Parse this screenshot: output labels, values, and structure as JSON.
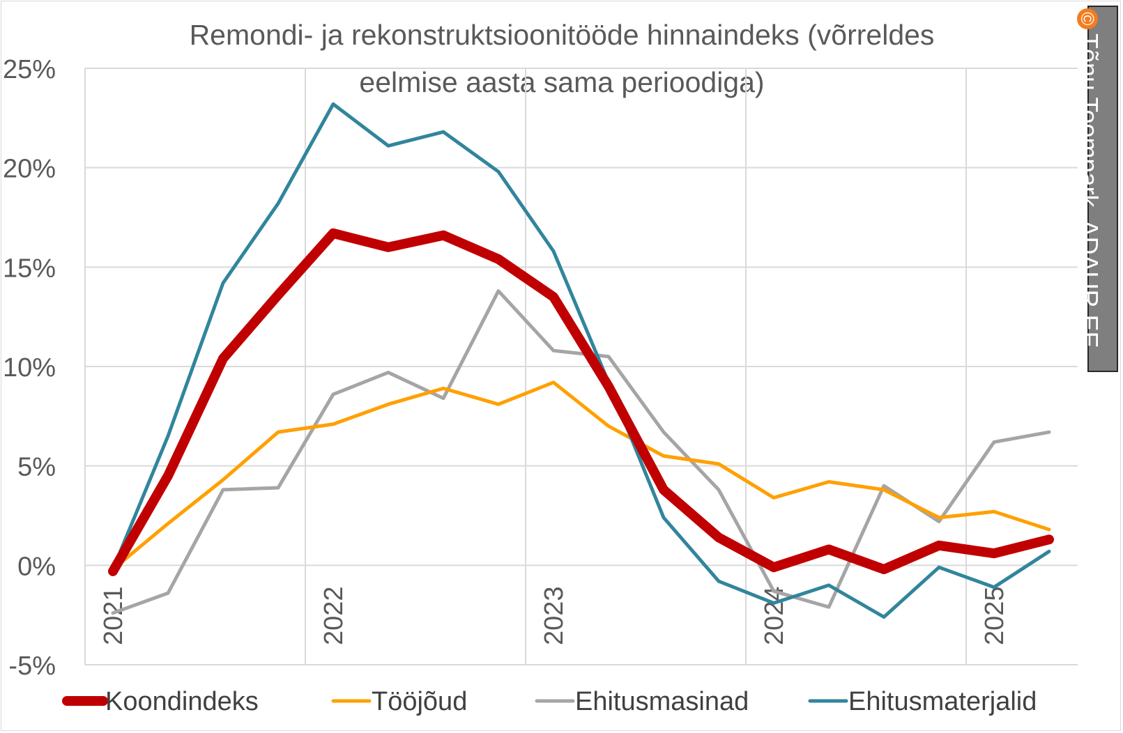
{
  "chart_data": {
    "type": "line",
    "title": "Remondi- ja rekonstruktsioonitööde hinnaindeks (võrreldes eelmise aasta sama perioodiga)",
    "title_lines": [
      "Remondi- ja rekonstruktsioonitööde hinnaindeks (võrreldes",
      "eelmise aasta sama perioodiga)"
    ],
    "y_ticks": [
      "25%",
      "20%",
      "15%",
      "10%",
      "5%",
      "0%",
      "-5%"
    ],
    "y_tick_values": [
      25,
      20,
      15,
      10,
      5,
      0,
      -5
    ],
    "ylim": [
      -5,
      25
    ],
    "x_tick_labels": [
      "2021",
      "2022",
      "2023",
      "2024",
      "2025"
    ],
    "quarters": [
      "2021 Q1",
      "2021 Q2",
      "2021 Q3",
      "2021 Q4",
      "2022 Q1",
      "2022 Q2",
      "2022 Q3",
      "2022 Q4",
      "2023 Q1",
      "2023 Q2",
      "2023 Q3",
      "2023 Q4",
      "2024 Q1",
      "2024 Q2",
      "2024 Q3",
      "2024 Q4",
      "2025 Q1",
      "2025 Q2"
    ],
    "grid": true,
    "legend_position": "bottom",
    "series": [
      {
        "name": "Koondindeks",
        "color": "#c00000",
        "width": 14,
        "values": [
          -0.3,
          4.5,
          10.4,
          13.6,
          16.7,
          16.0,
          16.6,
          15.4,
          13.5,
          9.0,
          3.8,
          1.4,
          -0.1,
          0.8,
          -0.2,
          1.0,
          0.6,
          1.3
        ]
      },
      {
        "name": "Tööjõud",
        "color": "#ffa000",
        "width": 5,
        "values": [
          -0.2,
          2.1,
          4.3,
          6.7,
          7.1,
          8.1,
          8.9,
          8.1,
          9.2,
          7.0,
          5.5,
          5.1,
          3.4,
          4.2,
          3.8,
          2.4,
          2.7,
          1.8
        ]
      },
      {
        "name": "Ehitusmasinad",
        "color": "#a5a5a5",
        "width": 5,
        "values": [
          -2.4,
          -1.4,
          3.8,
          3.9,
          8.6,
          9.7,
          8.4,
          13.8,
          10.8,
          10.5,
          6.7,
          3.8,
          -1.3,
          -2.1,
          4.0,
          2.2,
          6.2,
          6.7
        ]
      },
      {
        "name": "Ehitusmaterjalid",
        "color": "#31859c",
        "width": 5,
        "values": [
          -0.2,
          6.5,
          14.2,
          18.2,
          23.2,
          21.1,
          21.8,
          19.8,
          15.8,
          9.2,
          2.4,
          -0.8,
          -1.9,
          -1.0,
          -2.6,
          -0.1,
          -1.1,
          0.7
        ]
      }
    ]
  },
  "copyright": {
    "symbol": "©",
    "text": "Tõnu Toompark, ADAUR.EE",
    "badge_color": "#f47c20"
  }
}
